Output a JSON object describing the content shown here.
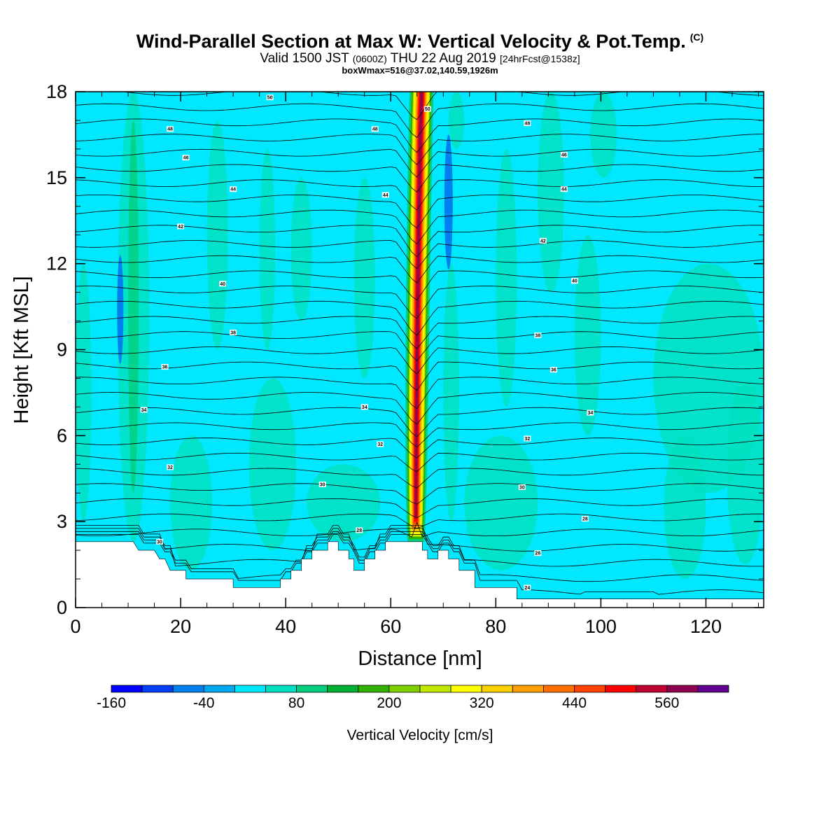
{
  "header": {
    "title": "Wind-Parallel Section at Max W: Vertical Velocity & Pot.Temp.",
    "title_tag": "(C)",
    "valid_prefix": "Valid 1500 JST",
    "valid_utc": "(0600Z)",
    "valid_date": "THU 22 Aug 2019",
    "valid_fcst": "[24hrFcst@1538z]",
    "box_info": "boxWmax=516@37.02,140.59,1926m"
  },
  "chart_data": {
    "type": "heatmap",
    "xlabel": "Distance [nm]",
    "ylabel": "Height [Kft MSL]",
    "xlim": [
      0,
      131
    ],
    "ylim": [
      0,
      18
    ],
    "x_ticks": [
      0,
      20,
      40,
      60,
      80,
      100,
      120
    ],
    "y_ticks": [
      0,
      3,
      6,
      9,
      12,
      15,
      18
    ],
    "field": "Vertical Velocity",
    "colorbar": {
      "title": "Vertical Velocity [cm/s]",
      "levels": [
        -160,
        -120,
        -80,
        -40,
        0,
        40,
        80,
        120,
        160,
        200,
        240,
        280,
        320,
        360,
        400,
        440,
        480,
        520,
        560,
        600,
        640
      ],
      "tick_labels": [
        "-160",
        "-40",
        "80",
        "200",
        "320",
        "440",
        "560"
      ],
      "tick_values": [
        -160,
        -40,
        80,
        200,
        320,
        440,
        560
      ],
      "colors": [
        "#0000ff",
        "#0040f8",
        "#0080f0",
        "#00a8f0",
        "#00e8ff",
        "#00e0c0",
        "#00d080",
        "#00b030",
        "#30b000",
        "#80d000",
        "#c0e800",
        "#ffff00",
        "#ffd000",
        "#ffa000",
        "#ff7000",
        "#ff4000",
        "#ff0000",
        "#c00030",
        "#900050",
        "#600090"
      ]
    },
    "updraft": {
      "x_center": 64.8,
      "max_w": 516,
      "base_height": 2.3,
      "top_height": 18
    },
    "terrain": [
      [
        0,
        2.3
      ],
      [
        11,
        2.3
      ],
      [
        12,
        2.0
      ],
      [
        15,
        2.0
      ],
      [
        16,
        1.7
      ],
      [
        17,
        1.7
      ],
      [
        18,
        1.3
      ],
      [
        21,
        1.3
      ],
      [
        21,
        1.0
      ],
      [
        30,
        1.0
      ],
      [
        30,
        0.7
      ],
      [
        39,
        0.7
      ],
      [
        39,
        1.0
      ],
      [
        41,
        1.0
      ],
      [
        41,
        1.3
      ],
      [
        43,
        1.3
      ],
      [
        43,
        1.7
      ],
      [
        45,
        1.7
      ],
      [
        45,
        2.0
      ],
      [
        48,
        2.0
      ],
      [
        48,
        2.3
      ],
      [
        50,
        2.3
      ],
      [
        50,
        2.0
      ],
      [
        52,
        2.0
      ],
      [
        52,
        1.7
      ],
      [
        53,
        1.7
      ],
      [
        53,
        1.3
      ],
      [
        55,
        1.3
      ],
      [
        55,
        1.7
      ],
      [
        57,
        1.7
      ],
      [
        57,
        2.0
      ],
      [
        59,
        2.0
      ],
      [
        59,
        2.3
      ],
      [
        66,
        2.3
      ],
      [
        66,
        2.0
      ],
      [
        67,
        2.0
      ],
      [
        67,
        1.7
      ],
      [
        69,
        1.7
      ],
      [
        69,
        2.0
      ],
      [
        71,
        2.0
      ],
      [
        71,
        1.7
      ],
      [
        73,
        1.7
      ],
      [
        73,
        1.3
      ],
      [
        76,
        1.3
      ],
      [
        76,
        0.7
      ],
      [
        84,
        0.7
      ],
      [
        84,
        0.3
      ],
      [
        131,
        0.3
      ]
    ],
    "isentropes": [
      24,
      26,
      28,
      30,
      32,
      34,
      36,
      38,
      40,
      42,
      44,
      46,
      48,
      50
    ],
    "contour_labels": [
      {
        "text": "50",
        "x": 37,
        "y": 17.8
      },
      {
        "text": "48",
        "x": 18,
        "y": 16.7
      },
      {
        "text": "46",
        "x": 21,
        "y": 15.7
      },
      {
        "text": "44",
        "x": 30,
        "y": 14.6
      },
      {
        "text": "42",
        "x": 20,
        "y": 13.3
      },
      {
        "text": "40",
        "x": 28,
        "y": 11.3
      },
      {
        "text": "38",
        "x": 30,
        "y": 9.6
      },
      {
        "text": "36",
        "x": 17,
        "y": 8.4
      },
      {
        "text": "34",
        "x": 13,
        "y": 6.9
      },
      {
        "text": "32",
        "x": 18,
        "y": 4.9
      },
      {
        "text": "30",
        "x": 16,
        "y": 2.3
      },
      {
        "text": "48",
        "x": 57,
        "y": 16.7
      },
      {
        "text": "44",
        "x": 59,
        "y": 14.4
      },
      {
        "text": "34",
        "x": 55,
        "y": 7.0
      },
      {
        "text": "32",
        "x": 58,
        "y": 5.7
      },
      {
        "text": "30",
        "x": 47,
        "y": 4.3
      },
      {
        "text": "28",
        "x": 54,
        "y": 2.7
      },
      {
        "text": "50",
        "x": 67,
        "y": 17.4
      },
      {
        "text": "48",
        "x": 86,
        "y": 16.9
      },
      {
        "text": "46",
        "x": 93,
        "y": 15.8
      },
      {
        "text": "44",
        "x": 93,
        "y": 14.6
      },
      {
        "text": "42",
        "x": 89,
        "y": 12.8
      },
      {
        "text": "40",
        "x": 95,
        "y": 11.4
      },
      {
        "text": "38",
        "x": 88,
        "y": 9.5
      },
      {
        "text": "36",
        "x": 91,
        "y": 8.3
      },
      {
        "text": "34",
        "x": 98,
        "y": 6.8
      },
      {
        "text": "32",
        "x": 86,
        "y": 5.9
      },
      {
        "text": "30",
        "x": 85,
        "y": 4.2
      },
      {
        "text": "28",
        "x": 97,
        "y": 3.1
      },
      {
        "text": "26",
        "x": 88,
        "y": 1.9
      },
      {
        "text": "24",
        "x": 86,
        "y": 0.7
      }
    ]
  }
}
